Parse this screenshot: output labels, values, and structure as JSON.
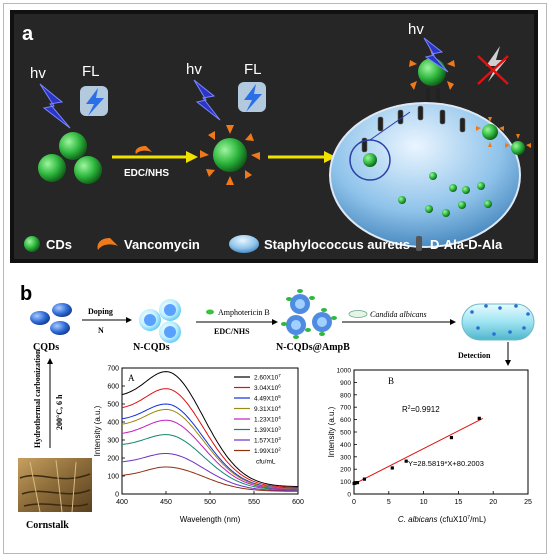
{
  "panel_a": {
    "label": "a",
    "hv_left": "hv",
    "fl_left": "FL",
    "hv_mid": "hv",
    "fl_mid": "FL",
    "hv_right": "hv",
    "step_label": "EDC/NHS",
    "legend": {
      "cds": "CDs",
      "vancomycin": "Vancomycin",
      "staph": "Staphylococcus aureus",
      "dala": "D-Ala-D-Ala"
    }
  },
  "panel_b": {
    "label": "b",
    "doping": "Doping",
    "n": "N",
    "amphotericin": "Amphotericin B",
    "edcnhs": "EDC/NHS",
    "candida": "Candida albicans",
    "cqds": "CQDs",
    "ncqds": "N-CQDs",
    "ncqds_ampb": "N-CQDs@AmpB",
    "detection": "Detection",
    "hydro": "Hydrothermal carbonization",
    "temp": "200°C, 6 h",
    "cornstalk": "Cornstalk"
  },
  "chart_data": [
    {
      "type": "line",
      "panel_label": "A",
      "xlabel": "Wavelength (nm)",
      "ylabel": "Intensity (a.u.)",
      "xlim": [
        400,
        600
      ],
      "ylim": [
        0,
        700
      ],
      "xticks": [
        "400",
        "450",
        "500",
        "550",
        "600"
      ],
      "yticks": [
        "0",
        "100",
        "200",
        "300",
        "400",
        "500",
        "600",
        "700"
      ],
      "legend_unit": "cfu/mL",
      "series": [
        {
          "name": "2.60X10",
          "exp": "7",
          "color": "#000000",
          "peak": 680,
          "base400": 540,
          "tail": 40
        },
        {
          "name": "3.04X10",
          "exp": "6",
          "color": "#e01010",
          "peak": 585,
          "base400": 470,
          "tail": 35
        },
        {
          "name": "4.49X10",
          "exp": "5",
          "color": "#1030e0",
          "peak": 500,
          "base400": 410,
          "tail": 30
        },
        {
          "name": "9.31X10",
          "exp": "4",
          "color": "#9a8a10",
          "peak": 470,
          "base400": 380,
          "tail": 28
        },
        {
          "name": "1.23X10",
          "exp": "4",
          "color": "#c020c0",
          "peak": 410,
          "base400": 330,
          "tail": 25
        },
        {
          "name": "1.39X10",
          "exp": "3",
          "color": "#108870",
          "peak": 330,
          "base400": 270,
          "tail": 22
        },
        {
          "name": "1.57X10",
          "exp": "3",
          "color": "#7030c0",
          "peak": 225,
          "base400": 175,
          "tail": 18
        },
        {
          "name": "1.99X10",
          "exp": "2",
          "color": "#903010",
          "peak": 150,
          "base400": 100,
          "tail": 15
        }
      ]
    },
    {
      "type": "scatter",
      "panel_label": "B",
      "xlabel_italic": "C. albicans",
      "xlabel_rest": "(cfuX10",
      "xlabel_exp": "7",
      "xlabel_end": "/mL)",
      "ylabel": "Intensity (a.u.)",
      "xlim": [
        0,
        25
      ],
      "ylim": [
        0,
        1000
      ],
      "xticks": [
        "0",
        "5",
        "10",
        "15",
        "20",
        "25"
      ],
      "yticks": [
        "0",
        "100",
        "200",
        "300",
        "400",
        "500",
        "600",
        "700",
        "800",
        "900",
        "1000"
      ],
      "r2_label": "R",
      "r2_exp": "2",
      "r2_value": "=0.9912",
      "equation": "Y=28.5819*X+80.2003",
      "fit": {
        "slope": 28.5819,
        "intercept": 80.2003,
        "x0": 0,
        "x1": 18.5
      },
      "points": [
        {
          "x": 0.02,
          "y": 85
        },
        {
          "x": 0.1,
          "y": 88
        },
        {
          "x": 0.2,
          "y": 90
        },
        {
          "x": 0.5,
          "y": 92
        },
        {
          "x": 1.5,
          "y": 120
        },
        {
          "x": 5.5,
          "y": 210
        },
        {
          "x": 7.5,
          "y": 265
        },
        {
          "x": 14,
          "y": 455
        },
        {
          "x": 18,
          "y": 610
        }
      ]
    }
  ]
}
